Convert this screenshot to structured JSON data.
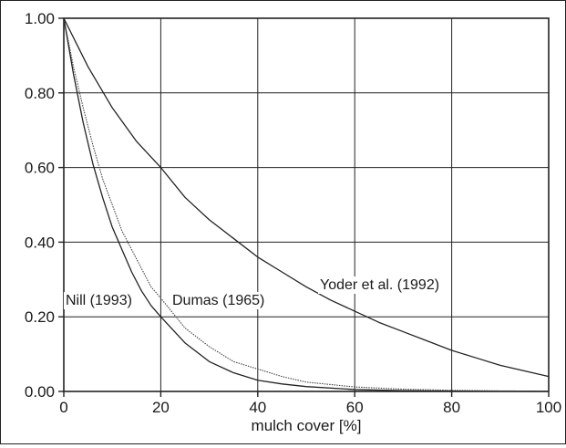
{
  "chart_data": {
    "type": "line",
    "title": "",
    "xlabel": "mulch cover [%]",
    "ylabel": "",
    "xlim": [
      0,
      100
    ],
    "ylim": [
      0,
      1
    ],
    "grid": true,
    "x_ticks": [
      "0",
      "20",
      "40",
      "60",
      "80",
      "100"
    ],
    "y_ticks": [
      "0.00",
      "0.20",
      "0.40",
      "0.60",
      "0.80",
      "1.00"
    ],
    "series": [
      {
        "name": "Nill (1993)",
        "x": [
          0,
          2,
          4,
          6,
          8,
          10,
          12,
          14,
          16,
          18,
          20,
          25,
          30,
          35,
          40,
          45,
          50,
          60,
          70,
          80,
          90,
          100
        ],
        "y": [
          1.0,
          0.85,
          0.72,
          0.61,
          0.52,
          0.44,
          0.38,
          0.32,
          0.27,
          0.23,
          0.2,
          0.13,
          0.08,
          0.05,
          0.03,
          0.02,
          0.013,
          0.005,
          0.002,
          0.001,
          0.0003,
          0.0001
        ]
      },
      {
        "name": "Dumas (1965)",
        "x": [
          0,
          2,
          4,
          6,
          8,
          10,
          12,
          14,
          16,
          18,
          20,
          25,
          30,
          35,
          40,
          45,
          50,
          60,
          70,
          80,
          90,
          100
        ],
        "y": [
          1.0,
          0.87,
          0.76,
          0.66,
          0.57,
          0.5,
          0.43,
          0.38,
          0.33,
          0.28,
          0.25,
          0.17,
          0.12,
          0.08,
          0.06,
          0.04,
          0.025,
          0.012,
          0.006,
          0.003,
          0.0015,
          0.0007
        ]
      },
      {
        "name": "Yoder et al. (1992)",
        "x": [
          0,
          5,
          10,
          15,
          20,
          25,
          30,
          35,
          40,
          45,
          50,
          55,
          60,
          65,
          70,
          75,
          80,
          85,
          90,
          95,
          100
        ],
        "y": [
          1.0,
          0.87,
          0.76,
          0.67,
          0.6,
          0.52,
          0.46,
          0.41,
          0.36,
          0.32,
          0.28,
          0.245,
          0.215,
          0.185,
          0.16,
          0.135,
          0.11,
          0.09,
          0.07,
          0.055,
          0.04
        ]
      }
    ],
    "annotations": [
      {
        "text": "Nill (1993)",
        "series": 0
      },
      {
        "text": "Dumas (1965)",
        "series": 1
      },
      {
        "text": "Yoder et al. (1992)",
        "series": 2
      }
    ],
    "colors": {
      "curve": "#222222",
      "curve_dotted": "#444444",
      "grid": "#222222",
      "background": "#ffffff"
    }
  }
}
